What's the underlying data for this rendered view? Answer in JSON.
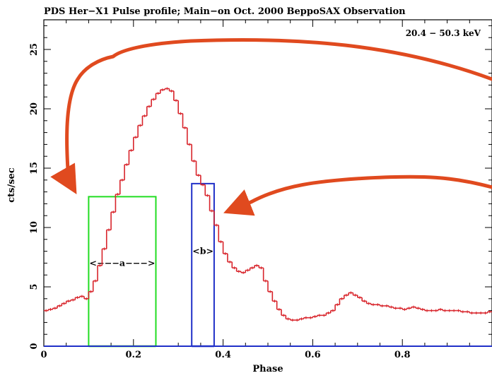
{
  "chart_data": {
    "type": "line",
    "title": "PDS Her−X1 Pulse profile; Main−on Oct. 2000 BeppoSAX Observation",
    "energy_label": "20.4 − 50.3 keV",
    "xlabel": "Phase",
    "ylabel": "cts/sec",
    "xlim": [
      0,
      1
    ],
    "ylim": [
      0,
      27.5
    ],
    "x_ticks": [
      0,
      0.2,
      0.4,
      0.6,
      0.8
    ],
    "x_tick_labels": [
      "0",
      "0.2",
      "0.4",
      "0.6",
      "0.8"
    ],
    "y_ticks": [
      0,
      5,
      10,
      15,
      20,
      25
    ],
    "y_tick_labels": [
      "0",
      "5",
      "10",
      "15",
      "20",
      "25"
    ],
    "grid": false,
    "series": [
      {
        "color": "#d8242b",
        "style": "histogram",
        "x": [
          0.0,
          0.01,
          0.02,
          0.03,
          0.04,
          0.05,
          0.06,
          0.07,
          0.08,
          0.09,
          0.1,
          0.11,
          0.12,
          0.13,
          0.14,
          0.15,
          0.16,
          0.17,
          0.18,
          0.19,
          0.2,
          0.21,
          0.22,
          0.23,
          0.24,
          0.25,
          0.26,
          0.27,
          0.28,
          0.29,
          0.3,
          0.31,
          0.32,
          0.33,
          0.34,
          0.35,
          0.36,
          0.37,
          0.38,
          0.39,
          0.4,
          0.41,
          0.42,
          0.43,
          0.44,
          0.45,
          0.46,
          0.47,
          0.48,
          0.49,
          0.5,
          0.51,
          0.52,
          0.53,
          0.54,
          0.55,
          0.56,
          0.57,
          0.58,
          0.59,
          0.6,
          0.61,
          0.62,
          0.63,
          0.64,
          0.65,
          0.66,
          0.67,
          0.68,
          0.69,
          0.7,
          0.71,
          0.72,
          0.73,
          0.74,
          0.75,
          0.76,
          0.77,
          0.78,
          0.79,
          0.8,
          0.81,
          0.82,
          0.83,
          0.84,
          0.85,
          0.86,
          0.87,
          0.88,
          0.89,
          0.9,
          0.91,
          0.92,
          0.93,
          0.94,
          0.95,
          0.96,
          0.97,
          0.98,
          0.99
        ],
        "y": [
          3.0,
          3.1,
          3.2,
          3.4,
          3.6,
          3.8,
          3.9,
          4.1,
          4.2,
          4.0,
          4.6,
          5.5,
          6.8,
          8.2,
          9.8,
          11.3,
          12.8,
          14.0,
          15.3,
          16.5,
          17.6,
          18.6,
          19.4,
          20.2,
          20.8,
          21.3,
          21.6,
          21.7,
          21.5,
          20.7,
          19.6,
          18.4,
          17.0,
          15.6,
          14.4,
          13.6,
          12.7,
          11.4,
          10.2,
          8.8,
          7.8,
          7.1,
          6.6,
          6.3,
          6.2,
          6.4,
          6.6,
          6.8,
          6.6,
          5.5,
          4.6,
          3.8,
          3.1,
          2.6,
          2.3,
          2.2,
          2.2,
          2.3,
          2.4,
          2.4,
          2.5,
          2.6,
          2.6,
          2.8,
          3.0,
          3.5,
          4.0,
          4.3,
          4.5,
          4.3,
          4.1,
          3.8,
          3.6,
          3.5,
          3.5,
          3.4,
          3.4,
          3.3,
          3.2,
          3.2,
          3.1,
          3.2,
          3.3,
          3.2,
          3.1,
          3.0,
          3.0,
          3.0,
          3.1,
          3.0,
          3.0,
          3.0,
          3.0,
          2.9,
          2.9,
          2.8,
          2.8,
          2.8,
          2.8,
          2.9
        ]
      }
    ],
    "regions": [
      {
        "label": "<−−−a−−−>",
        "color": "#22dd22",
        "x0": 0.1,
        "x1": 0.25,
        "height": 12.6,
        "arrow_y": 7.0
      },
      {
        "label": "<b>",
        "color": "#2030c8",
        "x0": 0.33,
        "x1": 0.38,
        "height": 13.7,
        "arrow_y": 8.0
      }
    ],
    "annotation_arrow_color": "#e04a1f"
  }
}
